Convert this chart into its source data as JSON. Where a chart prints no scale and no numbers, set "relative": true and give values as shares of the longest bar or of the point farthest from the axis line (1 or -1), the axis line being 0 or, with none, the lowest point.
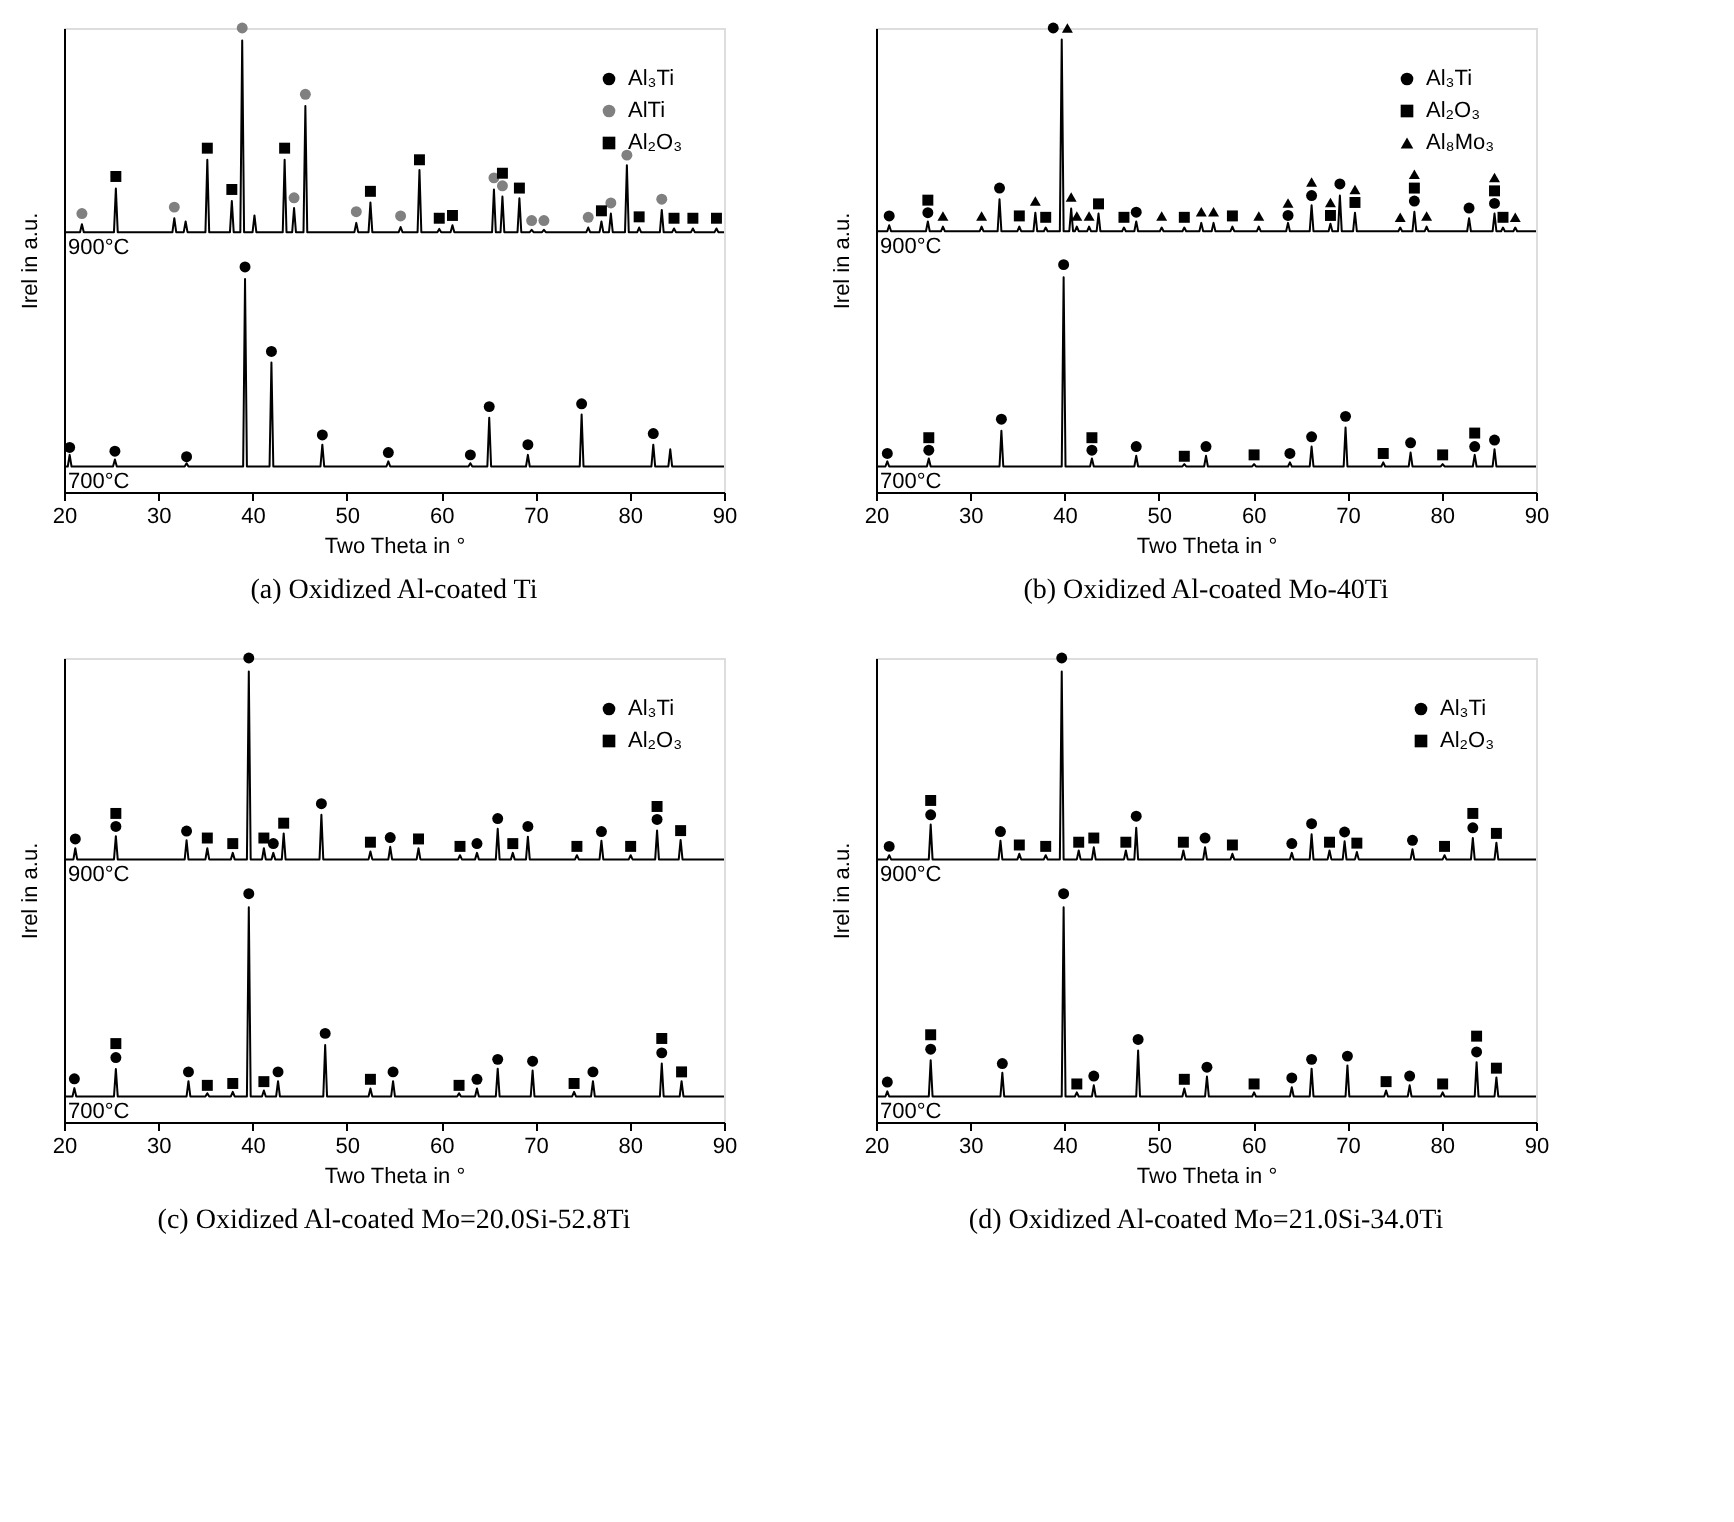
{
  "chart_data": [
    {
      "type": "line",
      "title": "(a) Oxidized Al-coated Ti",
      "xlabel": "Two Theta in °",
      "ylabel": "Irel in a.u.",
      "relative": true,
      "xlim": [
        20,
        90
      ],
      "xticks": [
        20,
        30,
        40,
        50,
        60,
        70,
        80,
        90
      ],
      "grid": false,
      "legend": "top right",
      "series": [
        {
          "name": "900°C",
          "type": "line",
          "color": "#000000",
          "line_style": "solid",
          "marker": "none",
          "x": [
            20,
            21.7,
            21.9,
            22.1,
            25.3,
            25.5,
            25.7,
            31.5,
            31.7,
            31.9,
            32.7,
            32.9,
            33.1,
            35.0,
            35.2,
            35.4,
            37.6,
            37.8,
            38.0,
            38.7,
            38.9,
            39.1,
            40.0,
            40.2,
            40.4,
            43.2,
            43.4,
            43.6,
            44.2,
            44.4,
            44.6,
            45.4,
            45.6,
            45.8,
            50.8,
            51.0,
            51.2,
            52.3,
            52.5,
            52.7,
            55.5,
            55.7,
            55.9,
            57.5,
            57.7,
            57.9,
            59.6,
            59.8,
            60.0,
            61.0,
            61.2,
            61.4,
            65.4,
            65.6,
            65.8,
            66.3,
            66.5,
            66.7,
            68.1,
            68.3,
            68.5,
            69.4,
            69.6,
            69.8,
            70.7,
            70.9,
            71.1,
            75.4,
            75.6,
            75.8,
            76.8,
            77.0,
            77.2,
            77.8,
            78.0,
            78.2,
            79.5,
            79.7,
            79.9,
            80.8,
            81.0,
            81.2,
            83.2,
            83.4,
            83.6,
            84.5,
            84.7,
            84.9,
            86.5,
            86.7,
            86.9,
            89.0,
            89.2,
            89.4,
            90
          ],
          "values": [
            0.56,
            0.56,
            0.577,
            0.56,
            0.56,
            0.654,
            0.56,
            0.56,
            0.59,
            0.56,
            0.56,
            0.583,
            0.56,
            0.56,
            0.716,
            0.56,
            0.56,
            0.627,
            0.56,
            0.56,
            0.973,
            0.56,
            0.56,
            0.596,
            0.56,
            0.56,
            0.716,
            0.56,
            0.56,
            0.612,
            0.56,
            0.56,
            0.832,
            0.56,
            0.56,
            0.58,
            0.56,
            0.56,
            0.624,
            0.56,
            0.56,
            0.571,
            0.56,
            0.56,
            0.694,
            0.56,
            0.56,
            0.567,
            0.56,
            0.56,
            0.575,
            0.56,
            0.56,
            0.652,
            0.56,
            0.56,
            0.637,
            0.56,
            0.56,
            0.633,
            0.56,
            0.56,
            0.565,
            0.56,
            0.56,
            0.565,
            0.56,
            0.56,
            0.57,
            0.56,
            0.56,
            0.583,
            0.56,
            0.56,
            0.6,
            0.56,
            0.56,
            0.704,
            0.56,
            0.56,
            0.57,
            0.56,
            0.56,
            0.608,
            0.56,
            0.56,
            0.568,
            0.56,
            0.56,
            0.568,
            0.56,
            0.56,
            0.568,
            0.56,
            0.56
          ]
        },
        {
          "name": "700°C",
          "type": "line",
          "color": "#000000",
          "line_style": "solid",
          "marker": "none",
          "x": [
            20,
            20.4,
            20.6,
            20.8,
            25.2,
            25.4,
            25.6,
            32.8,
            33.0,
            33.2,
            39.0,
            39.2,
            39.4,
            41.8,
            42.0,
            42.2,
            47.2,
            47.4,
            47.6,
            54.2,
            54.4,
            54.6,
            62.9,
            63.1,
            63.3,
            64.9,
            65.1,
            65.3,
            69.0,
            69.2,
            69.4,
            74.7,
            74.9,
            75.1,
            82.3,
            82.5,
            82.7,
            84.1,
            84.3,
            84.5,
            90
          ],
          "values": [
            0.055,
            0.055,
            0.08,
            0.055,
            0.055,
            0.07,
            0.055,
            0.055,
            0.062,
            0.055,
            0.055,
            0.459,
            0.055,
            0.055,
            0.279,
            0.055,
            0.055,
            0.102,
            0.055,
            0.055,
            0.066,
            0.055,
            0.055,
            0.062,
            0.055,
            0.055,
            0.16,
            0.055,
            0.055,
            0.08,
            0.055,
            0.055,
            0.167,
            0.055,
            0.055,
            0.102,
            0.055,
            0.055,
            0.092,
            0.055,
            0.055
          ]
        },
        {
          "name": "Al₃Ti",
          "type": "scatter",
          "color": "#000000",
          "marker": "circle",
          "x": [
            20.6,
            25.4,
            33.0,
            39.2,
            42.0,
            47.4,
            54.4,
            63.1,
            65.1,
            69.2,
            74.9,
            82.5
          ],
          "values": [
            0.096,
            0.088,
            0.076,
            0.485,
            0.303,
            0.123,
            0.085,
            0.08,
            0.184,
            0.102,
            0.19,
            0.126
          ]
        },
        {
          "name": "AlTi",
          "type": "scatter",
          "color": "#808080",
          "marker": "circle",
          "x": [
            21.9,
            31.7,
            38.9,
            44.4,
            45.6,
            51.0,
            55.7,
            65.6,
            66.5,
            69.6,
            70.9,
            75.6,
            78.0,
            79.7,
            83.4
          ],
          "values": [
            0.6,
            0.614,
            1.0,
            0.634,
            0.857,
            0.604,
            0.595,
            0.677,
            0.66,
            0.585,
            0.585,
            0.592,
            0.623,
            0.726,
            0.631
          ]
        },
        {
          "name": "Al₂O₃",
          "type": "scatter",
          "color": "#000000",
          "marker": "square",
          "x": [
            25.5,
            35.2,
            37.8,
            43.4,
            52.5,
            57.7,
            59.8,
            61.2,
            66.5,
            68.3,
            77.0,
            81.0,
            84.7,
            86.7,
            89.2
          ],
          "values": [
            0.68,
            0.741,
            0.652,
            0.741,
            0.648,
            0.716,
            0.59,
            0.596,
            0.687,
            0.655,
            0.606,
            0.593,
            0.59,
            0.59,
            0.59
          ]
        }
      ]
    },
    {
      "type": "line",
      "title": "(b) Oxidized Al-coated Mo-40Ti",
      "xlabel": "Two Theta in °",
      "ylabel": "Irel in a.u.",
      "relative": true,
      "xlim": [
        20,
        90
      ],
      "xticks": [
        20,
        30,
        40,
        50,
        60,
        70,
        80,
        90
      ],
      "grid": false,
      "legend": "top right",
      "series": [
        {
          "name": "900°C",
          "type": "line",
          "color": "#000000",
          "line_style": "solid",
          "marker": "none",
          "x": [
            20,
            21.2,
            21.4,
            21.6,
            25.3,
            25.5,
            25.7,
            26.9,
            27.1,
            27.3,
            31.0,
            31.2,
            31.4,
            32.9,
            33.1,
            33.3,
            35.0,
            35.2,
            35.4,
            36.7,
            36.9,
            37.1,
            37.8,
            38.0,
            38.2,
            39.5,
            39.7,
            39.9,
            40.5,
            40.7,
            40.9,
            41.1,
            41.3,
            41.5,
            42.4,
            42.6,
            42.8,
            43.4,
            43.6,
            43.8,
            46.1,
            46.3,
            46.5,
            47.4,
            47.6,
            47.8,
            50.1,
            50.3,
            50.5,
            52.5,
            52.7,
            52.9,
            54.3,
            54.5,
            54.7,
            55.6,
            55.8,
            56.0,
            57.6,
            57.8,
            58.0,
            60.4,
            60.6,
            60.8,
            63.5,
            63.7,
            63.9,
            66.0,
            66.2,
            66.4,
            68.0,
            68.2,
            68.4,
            69.0,
            69.2,
            69.4,
            70.6,
            70.8,
            71.0,
            75.4,
            75.6,
            75.8,
            76.9,
            77.1,
            77.3,
            78.2,
            78.4,
            78.6,
            82.7,
            82.9,
            83.1,
            85.4,
            85.6,
            85.8,
            86.3,
            86.5,
            86.7,
            87.6,
            87.8,
            88.0,
            90
          ],
          "values": [
            0.562,
            0.562,
            0.575,
            0.562,
            0.562,
            0.583,
            0.562,
            0.562,
            0.572,
            0.562,
            0.562,
            0.572,
            0.562,
            0.562,
            0.631,
            0.562,
            0.562,
            0.572,
            0.562,
            0.562,
            0.602,
            0.562,
            0.562,
            0.57,
            0.562,
            0.562,
            0.975,
            0.562,
            0.562,
            0.611,
            0.562,
            0.562,
            0.572,
            0.562,
            0.562,
            0.572,
            0.562,
            0.562,
            0.6,
            0.562,
            0.562,
            0.57,
            0.562,
            0.562,
            0.583,
            0.562,
            0.562,
            0.57,
            0.562,
            0.562,
            0.57,
            0.562,
            0.562,
            0.58,
            0.562,
            0.562,
            0.58,
            0.562,
            0.562,
            0.572,
            0.562,
            0.562,
            0.572,
            0.562,
            0.562,
            0.58,
            0.562,
            0.562,
            0.618,
            0.562,
            0.562,
            0.578,
            0.562,
            0.562,
            0.639,
            0.562,
            0.562,
            0.602,
            0.562,
            0.562,
            0.57,
            0.562,
            0.562,
            0.604,
            0.562,
            0.562,
            0.572,
            0.562,
            0.562,
            0.59,
            0.562,
            0.562,
            0.6,
            0.562,
            0.562,
            0.57,
            0.562,
            0.562,
            0.57,
            0.562,
            0.562
          ]
        },
        {
          "name": "700°C",
          "type": "line",
          "color": "#000000",
          "line_style": "solid",
          "marker": "none",
          "x": [
            20,
            21.0,
            21.2,
            21.4,
            25.4,
            25.6,
            25.8,
            33.1,
            33.3,
            33.5,
            39.7,
            39.9,
            40.1,
            42.7,
            42.9,
            43.1,
            47.4,
            47.6,
            47.8,
            52.5,
            52.7,
            52.9,
            54.8,
            55.0,
            55.2,
            59.9,
            60.1,
            60.3,
            63.7,
            63.9,
            64.1,
            66.0,
            66.2,
            66.4,
            69.6,
            69.8,
            70.0,
            73.6,
            73.8,
            74.0,
            76.5,
            76.7,
            76.9,
            79.9,
            80.1,
            80.3,
            83.3,
            83.5,
            83.7,
            85.4,
            85.6,
            85.8,
            90
          ],
          "values": [
            0.055,
            0.055,
            0.066,
            0.055,
            0.055,
            0.072,
            0.055,
            0.055,
            0.132,
            0.055,
            0.055,
            0.463,
            0.055,
            0.055,
            0.072,
            0.055,
            0.055,
            0.078,
            0.055,
            0.055,
            0.06,
            0.055,
            0.055,
            0.078,
            0.055,
            0.055,
            0.06,
            0.055,
            0.055,
            0.064,
            0.055,
            0.055,
            0.098,
            0.055,
            0.055,
            0.139,
            0.055,
            0.055,
            0.064,
            0.055,
            0.055,
            0.085,
            0.055,
            0.055,
            0.06,
            0.055,
            0.055,
            0.08,
            0.055,
            0.055,
            0.092,
            0.055,
            0.055
          ]
        },
        {
          "name": "Al₃Ti",
          "type": "scatter",
          "color": "#000000",
          "marker": "circle",
          "x": [
            21.4,
            25.5,
            33.1,
            38.8,
            47.6,
            63.7,
            66.2,
            69.2,
            77.1,
            82.9,
            85.6,
            21.2,
            25.6,
            33.3,
            39.9,
            42.9,
            47.6,
            55.0,
            63.9,
            66.2,
            69.8,
            76.7,
            83.5,
            85.6
          ],
          "values": [
            0.595,
            0.602,
            0.655,
            1.0,
            0.603,
            0.596,
            0.639,
            0.664,
            0.627,
            0.612,
            0.622,
            0.083,
            0.09,
            0.157,
            0.49,
            0.09,
            0.098,
            0.098,
            0.083,
            0.119,
            0.163,
            0.106,
            0.098,
            0.112
          ]
        },
        {
          "name": "Al₂O₃",
          "type": "scatter",
          "color": "#000000",
          "marker": "square",
          "x": [
            25.5,
            35.2,
            38.0,
            43.6,
            46.3,
            52.7,
            57.8,
            68.2,
            70.8,
            77.1,
            85.6,
            86.5,
            25.6,
            42.9,
            52.7,
            60.1,
            73.8,
            80.1,
            83.5
          ],
          "values": [
            0.629,
            0.595,
            0.592,
            0.621,
            0.592,
            0.592,
            0.595,
            0.596,
            0.624,
            0.655,
            0.649,
            0.592,
            0.117,
            0.117,
            0.077,
            0.08,
            0.083,
            0.08,
            0.127
          ]
        },
        {
          "name": "Al₈Mo₃",
          "type": "scatter",
          "color": "#000000",
          "marker": "triangle",
          "x": [
            27.1,
            31.2,
            36.9,
            40.3,
            40.7,
            41.3,
            42.6,
            50.3,
            54.5,
            55.8,
            60.6,
            63.7,
            66.2,
            68.2,
            70.8,
            75.6,
            77.1,
            78.4,
            85.6,
            87.8
          ],
          "values": [
            0.595,
            0.595,
            0.627,
            1.0,
            0.636,
            0.595,
            0.595,
            0.595,
            0.604,
            0.604,
            0.595,
            0.623,
            0.668,
            0.624,
            0.652,
            0.592,
            0.685,
            0.595,
            0.678,
            0.592
          ]
        }
      ]
    },
    {
      "type": "line",
      "title": "(c) Oxidized Al-coated Mo=20.0Si-52.8Ti",
      "xlabel": "Two Theta in °",
      "ylabel": "Irel in a.u.",
      "relative": true,
      "xlim": [
        20,
        90
      ],
      "xticks": [
        20,
        30,
        40,
        50,
        60,
        70,
        80,
        90
      ],
      "grid": false,
      "legend": "top right",
      "series": [
        {
          "name": "900°C",
          "type": "line",
          "color": "#000000",
          "line_style": "solid",
          "marker": "none",
          "x": [
            20,
            21.0,
            21.2,
            21.4,
            25.3,
            25.5,
            25.7,
            32.8,
            33.0,
            33.2,
            35.0,
            35.2,
            35.4,
            37.7,
            37.9,
            38.1,
            39.4,
            39.6,
            39.8,
            41.0,
            41.2,
            41.4,
            42.0,
            42.2,
            42.4,
            43.1,
            43.3,
            43.5,
            47.1,
            47.3,
            47.5,
            52.3,
            52.5,
            52.7,
            54.4,
            54.6,
            54.8,
            57.4,
            57.6,
            57.8,
            61.8,
            62.0,
            62.2,
            63.6,
            63.8,
            64.0,
            65.8,
            66.0,
            66.2,
            67.4,
            67.6,
            67.8,
            69.0,
            69.2,
            69.4,
            74.2,
            74.4,
            74.6,
            76.8,
            77.0,
            77.2,
            79.9,
            80.1,
            80.3,
            82.7,
            82.9,
            83.1,
            85.2,
            85.4,
            85.6,
            90
          ],
          "values": [
            0.566,
            0.566,
            0.59,
            0.566,
            0.566,
            0.616,
            0.566,
            0.566,
            0.607,
            0.566,
            0.566,
            0.59,
            0.566,
            0.566,
            0.58,
            0.566,
            0.566,
            0.971,
            0.566,
            0.566,
            0.59,
            0.566,
            0.566,
            0.58,
            0.566,
            0.566,
            0.622,
            0.566,
            0.566,
            0.662,
            0.566,
            0.566,
            0.583,
            0.566,
            0.566,
            0.593,
            0.566,
            0.566,
            0.59,
            0.566,
            0.566,
            0.575,
            0.566,
            0.566,
            0.58,
            0.566,
            0.566,
            0.632,
            0.566,
            0.566,
            0.58,
            0.566,
            0.566,
            0.615,
            0.566,
            0.566,
            0.575,
            0.566,
            0.566,
            0.606,
            0.566,
            0.566,
            0.575,
            0.566,
            0.566,
            0.628,
            0.566,
            0.566,
            0.608,
            0.566,
            0.566
          ]
        },
        {
          "name": "700°C",
          "type": "line",
          "color": "#000000",
          "line_style": "solid",
          "marker": "none",
          "x": [
            20,
            20.9,
            21.1,
            21.3,
            25.3,
            25.5,
            25.7,
            33.0,
            33.2,
            33.4,
            35.0,
            35.2,
            35.4,
            37.7,
            37.9,
            38.1,
            39.4,
            39.6,
            39.8,
            41.0,
            41.2,
            41.4,
            42.5,
            42.7,
            42.9,
            47.5,
            47.7,
            47.9,
            52.3,
            52.5,
            52.7,
            54.7,
            54.9,
            55.1,
            61.7,
            61.9,
            62.1,
            63.6,
            63.8,
            64.0,
            65.8,
            66.0,
            66.2,
            69.5,
            69.7,
            69.9,
            73.9,
            74.1,
            74.3,
            75.9,
            76.1,
            76.3,
            83.2,
            83.4,
            83.6,
            85.3,
            85.5,
            85.7,
            90
          ],
          "values": [
            0.055,
            0.055,
            0.073,
            0.055,
            0.055,
            0.114,
            0.055,
            0.055,
            0.088,
            0.055,
            0.055,
            0.062,
            0.055,
            0.055,
            0.065,
            0.055,
            0.055,
            0.463,
            0.055,
            0.055,
            0.068,
            0.055,
            0.055,
            0.088,
            0.055,
            0.055,
            0.166,
            0.055,
            0.055,
            0.072,
            0.055,
            0.055,
            0.088,
            0.055,
            0.055,
            0.062,
            0.055,
            0.055,
            0.072,
            0.055,
            0.055,
            0.115,
            0.055,
            0.055,
            0.111,
            0.055,
            0.055,
            0.065,
            0.055,
            0.055,
            0.088,
            0.055,
            0.055,
            0.126,
            0.055,
            0.055,
            0.088,
            0.055,
            0.055
          ]
        },
        {
          "name": "Al₃Ti",
          "type": "scatter",
          "color": "#000000",
          "marker": "circle",
          "x": [
            21.2,
            25.5,
            33.0,
            39.6,
            42.2,
            47.3,
            54.6,
            63.8,
            66.0,
            69.2,
            77.0,
            82.9,
            21.1,
            25.5,
            33.2,
            39.6,
            42.7,
            47.7,
            54.9,
            63.8,
            66.0,
            69.7,
            76.1,
            83.4
          ],
          "values": [
            0.61,
            0.637,
            0.627,
            1.0,
            0.6,
            0.686,
            0.613,
            0.6,
            0.654,
            0.637,
            0.626,
            0.652,
            0.093,
            0.139,
            0.108,
            0.492,
            0.108,
            0.191,
            0.108,
            0.092,
            0.135,
            0.131,
            0.108,
            0.149
          ]
        },
        {
          "name": "Al₂O₃",
          "type": "scatter",
          "color": "#000000",
          "marker": "square",
          "x": [
            25.5,
            35.2,
            37.9,
            41.2,
            43.3,
            52.5,
            57.6,
            62.0,
            67.6,
            74.4,
            80.1,
            82.9,
            85.4,
            25.5,
            35.2,
            37.9,
            41.2,
            52.5,
            61.9,
            74.1,
            83.4,
            85.5
          ],
          "values": [
            0.665,
            0.612,
            0.6,
            0.612,
            0.644,
            0.603,
            0.61,
            0.594,
            0.6,
            0.594,
            0.594,
            0.68,
            0.628,
            0.169,
            0.079,
            0.083,
            0.087,
            0.092,
            0.079,
            0.083,
            0.18,
            0.108
          ]
        }
      ]
    },
    {
      "type": "line",
      "title": "(d) Oxidized Al-coated Mo=21.0Si-34.0Ti",
      "xlabel": "Two Theta in °",
      "ylabel": "Irel in a.u.",
      "relative": true,
      "xlim": [
        20,
        90
      ],
      "xticks": [
        20,
        30,
        40,
        50,
        60,
        70,
        80,
        90
      ],
      "grid": false,
      "legend": "top right",
      "series": [
        {
          "name": "900°C",
          "type": "line",
          "color": "#000000",
          "line_style": "solid",
          "marker": "none",
          "x": [
            20,
            21.2,
            21.4,
            21.6,
            25.6,
            25.8,
            26.0,
            33.0,
            33.2,
            33.4,
            35.0,
            35.2,
            35.4,
            37.8,
            38.0,
            38.2,
            39.5,
            39.7,
            39.9,
            41.3,
            41.5,
            41.7,
            42.9,
            43.1,
            43.3,
            46.3,
            46.5,
            46.7,
            47.4,
            47.6,
            47.8,
            52.4,
            52.6,
            52.8,
            54.7,
            54.9,
            55.1,
            57.6,
            57.8,
            58.0,
            63.9,
            64.1,
            64.3,
            66.0,
            66.2,
            66.4,
            67.9,
            68.1,
            68.3,
            69.5,
            69.7,
            69.9,
            70.8,
            71.0,
            71.2,
            76.7,
            76.9,
            77.1,
            80.1,
            80.3,
            80.5,
            83.1,
            83.3,
            83.5,
            85.6,
            85.8,
            86.0,
            90
          ],
          "values": [
            0.566,
            0.566,
            0.575,
            0.566,
            0.566,
            0.641,
            0.566,
            0.566,
            0.606,
            0.566,
            0.566,
            0.578,
            0.566,
            0.566,
            0.575,
            0.566,
            0.566,
            0.971,
            0.566,
            0.566,
            0.585,
            0.566,
            0.566,
            0.592,
            0.566,
            0.566,
            0.585,
            0.566,
            0.566,
            0.634,
            0.566,
            0.566,
            0.585,
            0.566,
            0.566,
            0.592,
            0.566,
            0.566,
            0.578,
            0.566,
            0.566,
            0.58,
            0.566,
            0.566,
            0.62,
            0.566,
            0.566,
            0.585,
            0.566,
            0.566,
            0.605,
            0.566,
            0.566,
            0.582,
            0.566,
            0.566,
            0.588,
            0.566,
            0.566,
            0.575,
            0.566,
            0.566,
            0.612,
            0.566,
            0.566,
            0.602,
            0.566,
            0.566
          ]
        },
        {
          "name": "700°C",
          "type": "line",
          "color": "#000000",
          "line_style": "solid",
          "marker": "none",
          "x": [
            20,
            21.0,
            21.2,
            21.4,
            25.6,
            25.8,
            26.0,
            33.2,
            33.4,
            33.6,
            39.7,
            39.9,
            40.1,
            41.1,
            41.3,
            41.5,
            42.9,
            43.1,
            43.3,
            47.6,
            47.8,
            48.0,
            52.5,
            52.7,
            52.9,
            54.9,
            55.1,
            55.3,
            59.9,
            60.1,
            60.3,
            63.9,
            64.1,
            64.3,
            66.0,
            66.2,
            66.4,
            69.8,
            70.0,
            70.2,
            73.9,
            74.1,
            74.3,
            76.4,
            76.6,
            76.8,
            79.9,
            80.1,
            80.3,
            83.5,
            83.7,
            83.9,
            85.6,
            85.8,
            86.0,
            90
          ],
          "values": [
            0.055,
            0.055,
            0.066,
            0.055,
            0.055,
            0.133,
            0.055,
            0.055,
            0.106,
            0.055,
            0.055,
            0.463,
            0.055,
            0.055,
            0.064,
            0.055,
            0.055,
            0.079,
            0.055,
            0.055,
            0.154,
            0.055,
            0.055,
            0.072,
            0.055,
            0.055,
            0.098,
            0.055,
            0.055,
            0.064,
            0.055,
            0.055,
            0.075,
            0.055,
            0.055,
            0.115,
            0.055,
            0.055,
            0.122,
            0.055,
            0.055,
            0.068,
            0.055,
            0.055,
            0.079,
            0.055,
            0.055,
            0.064,
            0.055,
            0.055,
            0.129,
            0.055,
            0.055,
            0.096,
            0.055,
            0.055
          ]
        },
        {
          "name": "Al₃Ti",
          "type": "scatter",
          "color": "#000000",
          "marker": "circle",
          "x": [
            21.4,
            25.8,
            33.2,
            39.7,
            47.6,
            54.9,
            64.1,
            66.2,
            69.7,
            76.9,
            83.3,
            21.2,
            25.8,
            33.4,
            39.9,
            43.1,
            47.8,
            55.1,
            64.1,
            66.2,
            70.0,
            76.6,
            83.7
          ],
          "values": [
            0.594,
            0.662,
            0.626,
            1.0,
            0.659,
            0.612,
            0.6,
            0.643,
            0.625,
            0.607,
            0.634,
            0.086,
            0.157,
            0.126,
            0.492,
            0.099,
            0.178,
            0.118,
            0.095,
            0.135,
            0.142,
            0.099,
            0.151
          ]
        },
        {
          "name": "Al₂O₃",
          "type": "scatter",
          "color": "#000000",
          "marker": "square",
          "x": [
            25.8,
            35.2,
            38.0,
            41.5,
            43.1,
            46.5,
            52.6,
            57.8,
            68.1,
            71.0,
            80.3,
            83.3,
            85.8,
            25.8,
            41.3,
            52.7,
            60.1,
            74.1,
            80.1,
            83.7,
            85.8
          ],
          "values": [
            0.693,
            0.597,
            0.594,
            0.603,
            0.612,
            0.603,
            0.603,
            0.597,
            0.603,
            0.601,
            0.594,
            0.665,
            0.622,
            0.188,
            0.082,
            0.092,
            0.082,
            0.087,
            0.082,
            0.185,
            0.116
          ]
        }
      ]
    }
  ]
}
